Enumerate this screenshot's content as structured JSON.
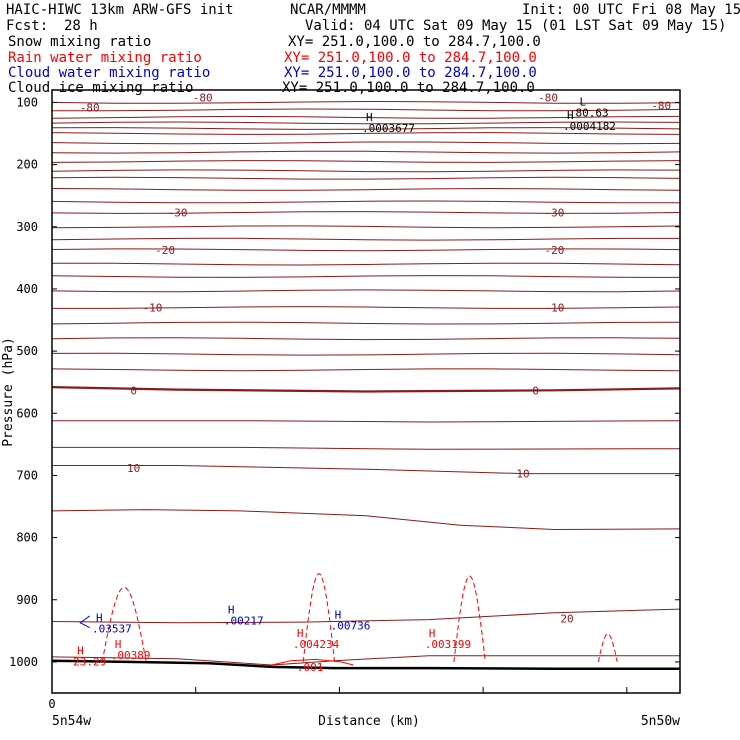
{
  "header": {
    "title": "HAIC-HIWC 13km ARW-GFS init",
    "org": "NCAR/MMMM",
    "init": "Init: 00 UTC Fri 08 May 15",
    "fcst_label": "Fcst:",
    "fcst_value": "28 h",
    "valid": "Valid: 04 UTC Sat 09 May 15 (01 LST Sat 09 May 15)",
    "fields": [
      {
        "name": "Snow mixing ratio",
        "xy": "XY= 251.0,100.0 to 284.7,100.0",
        "color": "#000000"
      },
      {
        "name": "Rain water mixing ratio",
        "xy": "XY= 251.0,100.0 to 284.7,100.0",
        "color": "#ff0000"
      },
      {
        "name": "Cloud water mixing ratio",
        "xy": "XY= 251.0,100.0 to 284.7,100.0",
        "color": "#0000cc"
      },
      {
        "name": "Cloud ice mixing ratio",
        "xy": "XY= 251.0,100.0 to 284.7,100.0",
        "color": "#000000"
      }
    ]
  },
  "chart_data": {
    "type": "contour",
    "ylabel": "Pressure (hPa)",
    "xlabel": "Distance (km)",
    "x_tick_labels": [
      "0"
    ],
    "x_end_labels": [
      "5n54w",
      "5n50w"
    ],
    "y_ticks": [
      100,
      200,
      300,
      400,
      500,
      600,
      700,
      800,
      900,
      1000
    ],
    "ylim": [
      80,
      1050
    ],
    "xlim": [
      0,
      100
    ],
    "colors": {
      "theta": "#8b1a1a",
      "rain": "#ff0000",
      "cloud_water": "#0000cc",
      "terrain": "#000000"
    },
    "contour_labels": [
      {
        "text": "-80",
        "x": 6,
        "p": 108,
        "color": "#8b1a1a"
      },
      {
        "text": "-80",
        "x": 24,
        "p": 92,
        "color": "#8b1a1a"
      },
      {
        "text": "-80",
        "x": 79,
        "p": 92,
        "color": "#8b1a1a"
      },
      {
        "text": "-80",
        "x": 97,
        "p": 105,
        "color": "#8b1a1a"
      },
      {
        "text": "-30",
        "x": 20,
        "p": 277,
        "color": "#8b1a1a"
      },
      {
        "text": "-30",
        "x": 80,
        "p": 277,
        "color": "#8b1a1a"
      },
      {
        "text": "-20",
        "x": 18,
        "p": 337,
        "color": "#8b1a1a"
      },
      {
        "text": "-20",
        "x": 80,
        "p": 337,
        "color": "#8b1a1a"
      },
      {
        "text": "-10",
        "x": 16,
        "p": 430,
        "color": "#8b1a1a"
      },
      {
        "text": "-10",
        "x": 80,
        "p": 430,
        "color": "#8b1a1a"
      },
      {
        "text": "0",
        "x": 13,
        "p": 563,
        "color": "#8b1a1a"
      },
      {
        "text": "0",
        "x": 77,
        "p": 563,
        "color": "#8b1a1a"
      },
      {
        "text": "10",
        "x": 13,
        "p": 688,
        "color": "#8b1a1a"
      },
      {
        "text": "10",
        "x": 75,
        "p": 697,
        "color": "#8b1a1a"
      },
      {
        "text": "20",
        "x": 82,
        "p": 930,
        "color": "#8b1a1a"
      }
    ],
    "extrema": [
      {
        "type": "H",
        "value": ".0003677",
        "x": 50,
        "p": 130,
        "color": "#000000"
      },
      {
        "type": "L",
        "value": "80.63",
        "x": 84,
        "p": 105,
        "color": "#000000"
      },
      {
        "type": "H",
        "value": ".0004182",
        "x": 82,
        "p": 127,
        "color": "#000000"
      },
      {
        "type": "H",
        "value": ".03537",
        "x": 7,
        "p": 935,
        "color": "#0000cc"
      },
      {
        "type": "H",
        "value": ".00217",
        "x": 28,
        "p": 922,
        "color": "#0000cc"
      },
      {
        "type": "H",
        "value": ".00736",
        "x": 45,
        "p": 930,
        "color": "#0000cc"
      },
      {
        "type": "H",
        "value": "23.29",
        "x": 4,
        "p": 988,
        "color": "#ff0000"
      },
      {
        "type": "H",
        "value": ".00389",
        "x": 10,
        "p": 978,
        "color": "#ff0000"
      },
      {
        "type": "H",
        "value": ".004234",
        "x": 39,
        "p": 960,
        "color": "#ff0000"
      },
      {
        "type": "H",
        "value": ".003199",
        "x": 60,
        "p": 960,
        "color": "#ff0000"
      }
    ],
    "extra_labels": [
      {
        "text": ".001",
        "x": 39,
        "p": 1008,
        "color": "#ff0000"
      }
    ]
  }
}
